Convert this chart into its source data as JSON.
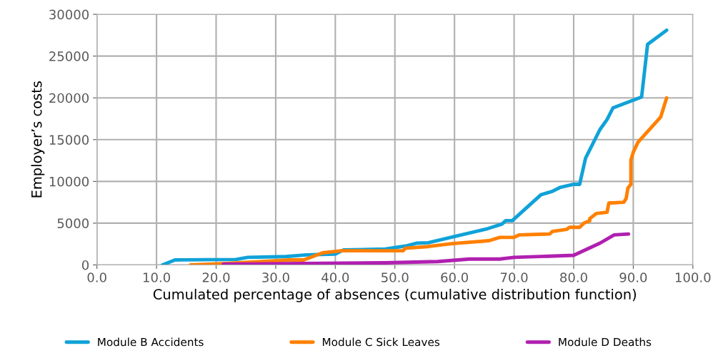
{
  "chart_data": {
    "type": "line",
    "xlabel": "Cumulated percentage of absences (cumulative distribution function)",
    "ylabel": "Employer’s costs",
    "xlim": [
      0,
      100
    ],
    "xticks": [
      {
        "value": 0,
        "label": "0.0"
      },
      {
        "value": 10,
        "label": "10.0"
      },
      {
        "value": 20,
        "label": "20.0"
      },
      {
        "value": 30,
        "label": "30.0"
      },
      {
        "value": 40,
        "label": "40.0"
      },
      {
        "value": 50,
        "label": "50.0"
      },
      {
        "value": 60,
        "label": "60.0"
      },
      {
        "value": 70,
        "label": "70.0"
      },
      {
        "value": 80,
        "label": "80.0"
      },
      {
        "value": 90,
        "label": "90.0"
      },
      {
        "value": 100,
        "label": "100.0"
      }
    ],
    "ylim": [
      0,
      30000
    ],
    "yticks": [
      0,
      5000,
      10000,
      15000,
      20000,
      25000,
      30000
    ],
    "grid": true,
    "legend": "bottom",
    "marker": "none",
    "line_style": "solid",
    "series": [
      {
        "name": "Module B Accidents",
        "color": "#10a2d8",
        "x": [
          11.0,
          13.1,
          23.3,
          25.3,
          31.7,
          35.2,
          40.0,
          41.4,
          48.4,
          52.0,
          53.6,
          55.6,
          60.0,
          65.6,
          68.0,
          68.6,
          69.7,
          74.5,
          76.4,
          77.8,
          80.0,
          81.0,
          82.0,
          84.4,
          85.6,
          86.6,
          91.4,
          92.4,
          95.6
        ],
        "values": [
          0,
          600,
          650,
          900,
          1000,
          1200,
          1300,
          1800,
          1900,
          2300,
          2600,
          2650,
          3400,
          4350,
          4900,
          5300,
          5300,
          8400,
          8800,
          9300,
          9650,
          9650,
          12800,
          16200,
          17400,
          18800,
          20100,
          26400,
          28100
        ]
      },
      {
        "name": "Module C Sick Leaves",
        "color": "#ff8000",
        "x": [
          15.7,
          21.2,
          32.5,
          34.7,
          37.9,
          41.0,
          48.4,
          51.4,
          51.7,
          55.6,
          59.6,
          65.8,
          67.6,
          70.0,
          70.9,
          76.0,
          76.4,
          78.8,
          79.3,
          81.0,
          81.7,
          82.7,
          82.7,
          83.8,
          85.6,
          85.9,
          88.4,
          88.8,
          89.1,
          89.6,
          89.6,
          90.0,
          90.8,
          94.6,
          95.6
        ],
        "values": [
          0,
          150,
          600,
          600,
          1450,
          1700,
          1700,
          1700,
          2000,
          2200,
          2550,
          2900,
          3300,
          3300,
          3600,
          3700,
          4000,
          4250,
          4500,
          4500,
          5000,
          5300,
          5550,
          6150,
          6300,
          7400,
          7500,
          7950,
          9200,
          9650,
          12550,
          13500,
          14700,
          17700,
          20000
        ]
      },
      {
        "name": "Module D Deaths",
        "color": "#b020b0",
        "x": [
          21.2,
          48.4,
          57.2,
          62.5,
          67.6,
          70.0,
          80.0,
          84.4,
          86.8,
          89.2
        ],
        "values": [
          100,
          250,
          400,
          700,
          700,
          900,
          1150,
          2600,
          3600,
          3700
        ]
      }
    ]
  }
}
